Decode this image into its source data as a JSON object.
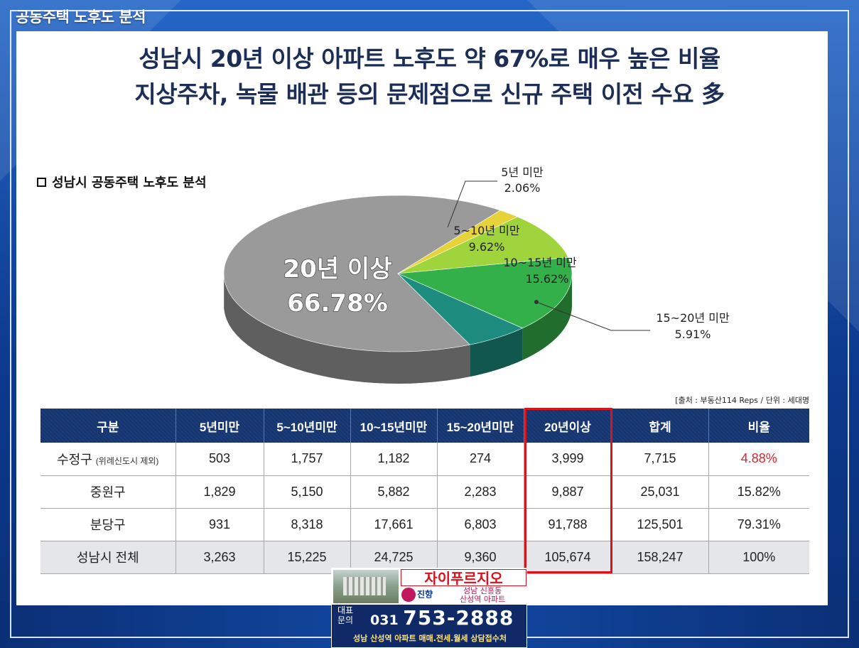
{
  "page": {
    "top_title": "공동주택 노후도 분석",
    "headline_line1": "성남시 20년 이상 아파트 노후도 약 67%로 매우 높은 비율",
    "headline_line2": "지상주차, 녹물 배관 등의 문제점으로 신규 주택 이전 수요 多",
    "section_label": "성남시 공동주택 노후도 분석",
    "source_note": "[출처 : 부동산114 Reps / 단위 : 세대명"
  },
  "colors": {
    "navy": "#1c2e55",
    "table_header": "#1b3c7c",
    "highlight": "#d5161d",
    "slice_20plus": "#9a9a9a",
    "slice_under5": "#e6d33a",
    "slice_5_10": "#9fd43c",
    "slice_10_15": "#34b04a",
    "slice_15_20": "#1d8c7e"
  },
  "chart_data": {
    "type": "pie",
    "slices": [
      {
        "label": "20년 이상",
        "value": 66.78,
        "display": "66.78%"
      },
      {
        "label": "5년 미만",
        "value": 2.06,
        "display": "2.06%"
      },
      {
        "label": "5~10년 미만",
        "value": 9.62,
        "display": "9.62%"
      },
      {
        "label": "10~15년 미만",
        "value": 15.62,
        "display": "15.62%"
      },
      {
        "label": "15~20년 미만",
        "value": 5.91,
        "display": "5.91%"
      }
    ]
  },
  "table": {
    "headers": [
      "구분",
      "5년미만",
      "5~10년미만",
      "10~15년미만",
      "15~20년미만",
      "20년이상",
      "합계",
      "비율"
    ],
    "rows": [
      {
        "name": "수정구",
        "note": "(위례신도시 제외)",
        "cells": [
          "503",
          "1,757",
          "1,182",
          "274",
          "3,999",
          "7,715",
          "4.88%"
        ]
      },
      {
        "name": "중원구",
        "note": "",
        "cells": [
          "1,829",
          "5,150",
          "5,882",
          "2,283",
          "9,887",
          "25,031",
          "15.82%"
        ]
      },
      {
        "name": "분당구",
        "note": "",
        "cells": [
          "931",
          "8,318",
          "17,661",
          "6,803",
          "91,788",
          "125,501",
          "79.31%"
        ]
      },
      {
        "name": "성남시 전체",
        "note": "",
        "cells": [
          "3,263",
          "15,225",
          "24,725",
          "9,360",
          "105,674",
          "158,247",
          "100%"
        ]
      }
    ]
  },
  "ad": {
    "brand": "자이푸르지오",
    "agent": "진향",
    "area_line1": "성남 신흥동",
    "area_line2": "산성역 아파트",
    "contact_line1": "대표",
    "contact_line2": "문의",
    "phone_prefix": "031",
    "phone_number": "753-2888",
    "bottom_text": "성남 산성역 아파트 매매.전세.월세 상담접수처"
  }
}
